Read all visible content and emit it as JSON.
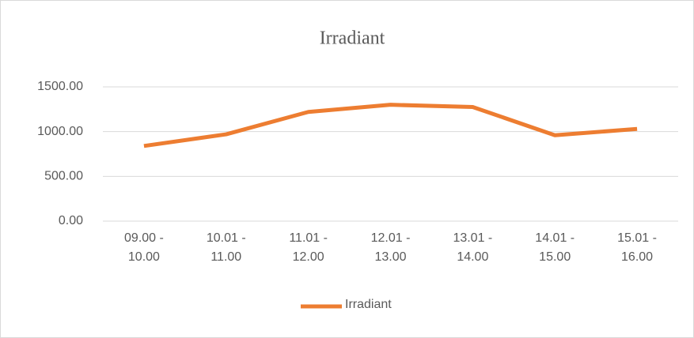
{
  "chart_data": {
    "type": "line",
    "title": "Irradiant",
    "categories": [
      "09.00 - 10.00",
      "10.01 - 11.00",
      "11.01 - 12.00",
      "12.01 - 13.00",
      "13.01 - 14.00",
      "14.01 - 15.00",
      "15.01 - 16.00"
    ],
    "series": [
      {
        "name": "Irradiant",
        "color": "#ed7d31",
        "values": [
          840,
          970,
          1220,
          1300,
          1275,
          960,
          1030
        ]
      }
    ],
    "ylim": [
      0,
      1500
    ],
    "yticks": [
      {
        "value": 0,
        "label": "0.00"
      },
      {
        "value": 500,
        "label": "500.00"
      },
      {
        "value": 1000,
        "label": "1000.00"
      },
      {
        "value": 1500,
        "label": "1500.00"
      }
    ],
    "grid": true,
    "legend": "bottom"
  }
}
